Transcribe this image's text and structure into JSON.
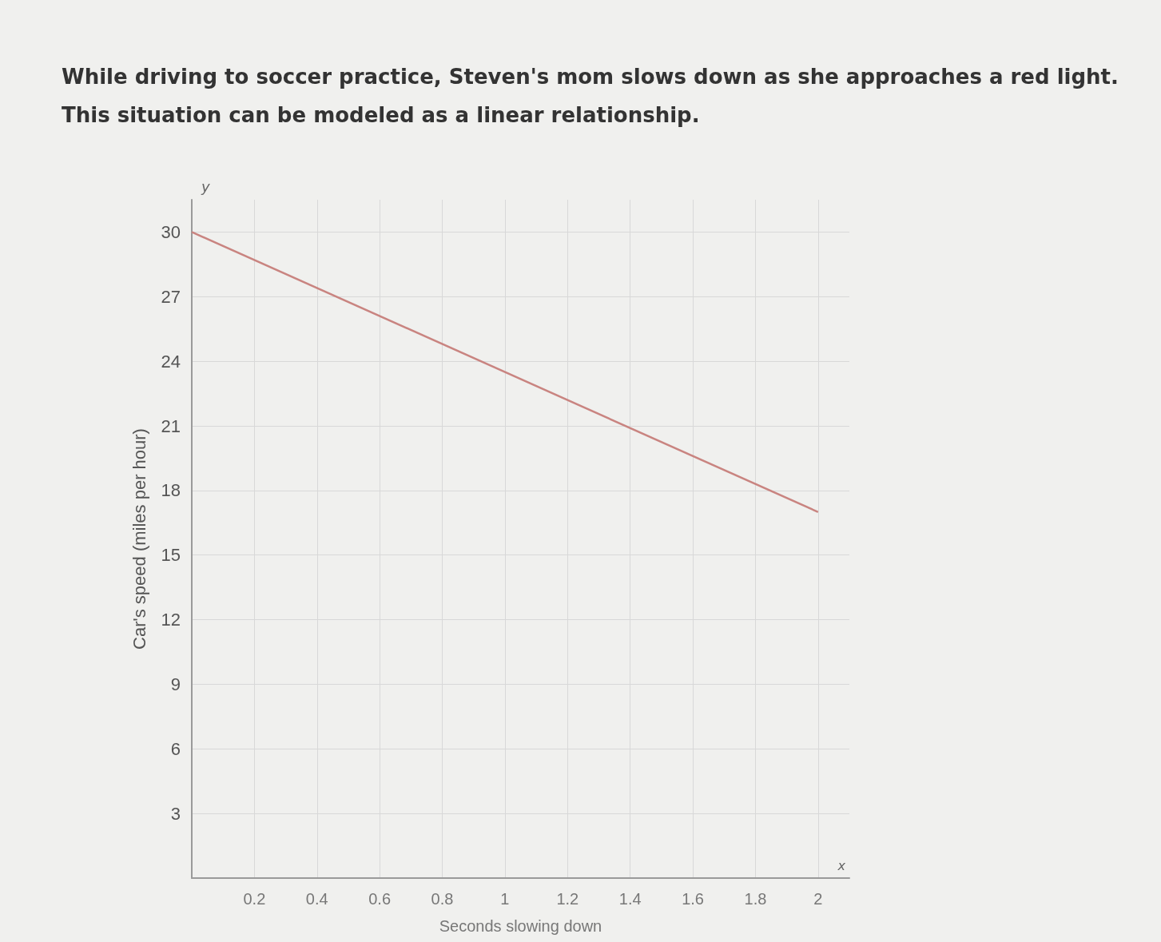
{
  "chart_data": {
    "type": "line",
    "title": "While driving to soccer practice, Steven's mom slows down as she approaches a red light.",
    "subtitle": "This situation can be modeled as a linear relationship.",
    "xlabel": "Seconds slowing down",
    "ylabel": "Car's speed (miles per hour)",
    "annotations": [
      "y",
      "x"
    ],
    "x": [
      0,
      2
    ],
    "series": [
      {
        "color": "#c98480",
        "values": [
          30,
          17
        ]
      }
    ],
    "xlim": [
      0,
      2.1
    ],
    "xticks": [
      0.2,
      0.4,
      0.6,
      0.8,
      1,
      1.2,
      1.4,
      1.6,
      1.8,
      2
    ],
    "ylim": [
      0,
      31.5
    ],
    "yticks": [
      3,
      6,
      9,
      12,
      15,
      18,
      21,
      24,
      27,
      30
    ],
    "grid": true,
    "marker": "none",
    "line_style": "solid"
  }
}
